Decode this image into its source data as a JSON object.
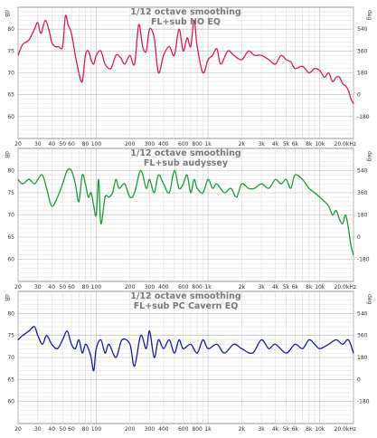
{
  "chart_data": [
    {
      "type": "line",
      "title": "1/12 octave smoothing",
      "subtitle": "FL+sub NO EQ",
      "y_unit_label": "dB",
      "right_unit_label": "deg",
      "x_unit_label": "Hz",
      "x_scale": "log",
      "xlim": [
        20,
        20000
      ],
      "ylim": [
        55,
        85
      ],
      "right_ylim": [
        -360,
        720
      ],
      "grid": true,
      "x_ticks": [
        {
          "v": 20,
          "label": "20"
        },
        {
          "v": 30,
          "label": "30"
        },
        {
          "v": 40,
          "label": "40"
        },
        {
          "v": 50,
          "label": "50"
        },
        {
          "v": 60,
          "label": "60"
        },
        {
          "v": 80,
          "label": "80"
        },
        {
          "v": 100,
          "label": "100"
        },
        {
          "v": 200,
          "label": "200"
        },
        {
          "v": 300,
          "label": "300"
        },
        {
          "v": 400,
          "label": "400"
        },
        {
          "v": 600,
          "label": "600"
        },
        {
          "v": 800,
          "label": "800"
        },
        {
          "v": 1000,
          "label": "1k"
        },
        {
          "v": 2000,
          "label": "2k"
        },
        {
          "v": 3000,
          "label": "3k"
        },
        {
          "v": 4000,
          "label": "4k"
        },
        {
          "v": 5000,
          "label": "5k"
        },
        {
          "v": 6000,
          "label": "6k"
        },
        {
          "v": 8000,
          "label": "8k"
        },
        {
          "v": 10000,
          "label": "10k"
        },
        {
          "v": 20000,
          "label": "20.0kHz"
        }
      ],
      "y_ticks": [
        {
          "v": 80,
          "label": "80"
        },
        {
          "v": 75,
          "label": "75"
        },
        {
          "v": 70,
          "label": "70"
        },
        {
          "v": 65,
          "label": "65"
        },
        {
          "v": 60,
          "label": "60"
        }
      ],
      "right_ticks": [
        {
          "v": 540,
          "label": "540"
        },
        {
          "v": 360,
          "label": "360"
        },
        {
          "v": 180,
          "label": "180"
        },
        {
          "v": 0,
          "label": "0"
        },
        {
          "v": -180,
          "label": "-180"
        }
      ],
      "series": [
        {
          "color": "#d81b50",
          "x": [
            20,
            22,
            25,
            28,
            30,
            32,
            35,
            38,
            40,
            43,
            46,
            50,
            53,
            56,
            60,
            65,
            70,
            75,
            80,
            85,
            90,
            95,
            100,
            110,
            120,
            135,
            150,
            165,
            180,
            200,
            220,
            240,
            260,
            280,
            300,
            330,
            360,
            400,
            450,
            500,
            550,
            600,
            650,
            700,
            750,
            800,
            900,
            1000,
            1100,
            1200,
            1300,
            1500,
            1700,
            2000,
            2300,
            2600,
            3000,
            3500,
            4000,
            4500,
            5000,
            5500,
            6000,
            7000,
            8000,
            9000,
            10000,
            11000,
            12000,
            13000,
            14000,
            15000,
            16000,
            17000,
            18000,
            19000,
            20000
          ],
          "y": [
            74,
            76.5,
            77.5,
            80,
            81.5,
            79,
            82,
            79.5,
            77,
            76,
            76,
            76,
            83,
            81,
            79,
            74,
            70,
            68,
            74,
            75,
            73,
            72,
            74,
            75,
            72,
            71,
            74,
            73.5,
            72,
            74,
            72,
            81,
            76,
            75,
            80,
            78,
            70,
            74,
            76,
            74,
            80,
            75,
            78,
            76,
            82,
            76,
            70,
            73,
            74,
            75.5,
            72,
            75,
            74,
            73,
            75,
            74,
            74,
            73,
            72,
            74,
            73,
            72.5,
            71,
            71.5,
            70,
            71,
            70.5,
            69,
            70,
            68,
            69,
            69,
            67.5,
            67,
            66,
            64,
            63
          ]
        }
      ]
    },
    {
      "type": "line",
      "title": "1/12 octave smoothing",
      "subtitle": "FL+sub audyssey",
      "y_unit_label": "dB",
      "right_unit_label": "deg",
      "x_unit_label": "Hz",
      "x_scale": "log",
      "xlim": [
        20,
        20000
      ],
      "ylim": [
        55,
        85
      ],
      "right_ylim": [
        -360,
        720
      ],
      "grid": true,
      "x_ticks": [
        {
          "v": 20,
          "label": "20"
        },
        {
          "v": 30,
          "label": "30"
        },
        {
          "v": 40,
          "label": "40"
        },
        {
          "v": 50,
          "label": "50"
        },
        {
          "v": 60,
          "label": "60"
        },
        {
          "v": 80,
          "label": "80"
        },
        {
          "v": 100,
          "label": "100"
        },
        {
          "v": 200,
          "label": "200"
        },
        {
          "v": 300,
          "label": "300"
        },
        {
          "v": 400,
          "label": "400"
        },
        {
          "v": 600,
          "label": "600"
        },
        {
          "v": 800,
          "label": "800"
        },
        {
          "v": 1000,
          "label": "1k"
        },
        {
          "v": 2000,
          "label": "2k"
        },
        {
          "v": 3000,
          "label": "3k"
        },
        {
          "v": 4000,
          "label": "4k"
        },
        {
          "v": 5000,
          "label": "5k"
        },
        {
          "v": 6000,
          "label": "6k"
        },
        {
          "v": 8000,
          "label": "8k"
        },
        {
          "v": 10000,
          "label": "10k"
        },
        {
          "v": 20000,
          "label": "20.0kHz"
        }
      ],
      "y_ticks": [
        {
          "v": 80,
          "label": "80"
        },
        {
          "v": 75,
          "label": "75"
        },
        {
          "v": 70,
          "label": "70"
        },
        {
          "v": 65,
          "label": "65"
        },
        {
          "v": 60,
          "label": "60"
        }
      ],
      "right_ticks": [
        {
          "v": 540,
          "label": "540"
        },
        {
          "v": 360,
          "label": "360"
        },
        {
          "v": 180,
          "label": "180"
        },
        {
          "v": 0,
          "label": "0"
        },
        {
          "v": -180,
          "label": "-180"
        }
      ],
      "series": [
        {
          "color": "#1e9a3c",
          "x": [
            20,
            22,
            25,
            28,
            30,
            33,
            36,
            40,
            45,
            50,
            55,
            60,
            65,
            70,
            75,
            80,
            85,
            90,
            95,
            100,
            105,
            110,
            120,
            130,
            140,
            150,
            160,
            180,
            200,
            220,
            250,
            280,
            300,
            330,
            360,
            400,
            450,
            500,
            550,
            600,
            650,
            700,
            750,
            800,
            900,
            1000,
            1100,
            1200,
            1400,
            1600,
            1800,
            2000,
            2300,
            2600,
            3000,
            3500,
            4000,
            4500,
            5000,
            5500,
            6000,
            7000,
            8000,
            9000,
            10000,
            11000,
            12000,
            13000,
            14000,
            15000,
            16000,
            17000,
            18000,
            19000,
            20000
          ],
          "y": [
            78,
            77,
            78,
            77,
            78,
            79,
            76,
            72,
            74,
            77,
            80,
            80,
            77,
            73,
            79,
            77,
            74,
            75,
            72,
            70,
            78,
            68,
            74,
            74,
            75,
            78,
            76,
            77,
            74,
            75,
            80,
            76,
            78,
            75,
            79,
            77,
            75,
            80,
            76,
            77,
            79,
            75,
            78,
            76,
            75,
            78,
            76,
            77,
            75,
            76,
            74,
            77,
            76,
            76,
            77,
            76,
            78,
            77,
            78,
            76,
            79,
            78,
            76,
            75,
            74,
            73,
            72,
            70,
            71,
            69,
            68,
            70,
            67,
            63,
            61
          ]
        }
      ]
    },
    {
      "type": "line",
      "title": "1/12 octave smoothing",
      "subtitle": "FL+sub PC Cavern EQ",
      "y_unit_label": "dB",
      "right_unit_label": "deg",
      "x_unit_label": "Hz",
      "x_scale": "log",
      "xlim": [
        20,
        20000
      ],
      "ylim": [
        55,
        85
      ],
      "right_ylim": [
        -360,
        720
      ],
      "grid": true,
      "x_ticks": [
        {
          "v": 20,
          "label": "20"
        },
        {
          "v": 30,
          "label": "30"
        },
        {
          "v": 40,
          "label": "40"
        },
        {
          "v": 50,
          "label": "50"
        },
        {
          "v": 60,
          "label": "60"
        },
        {
          "v": 80,
          "label": "80"
        },
        {
          "v": 100,
          "label": "100"
        },
        {
          "v": 200,
          "label": "200"
        },
        {
          "v": 300,
          "label": "300"
        },
        {
          "v": 400,
          "label": "400"
        },
        {
          "v": 600,
          "label": "600"
        },
        {
          "v": 800,
          "label": "800"
        },
        {
          "v": 1000,
          "label": "1k"
        },
        {
          "v": 2000,
          "label": "2k"
        },
        {
          "v": 3000,
          "label": "3k"
        },
        {
          "v": 4000,
          "label": "4k"
        },
        {
          "v": 5000,
          "label": "5k"
        },
        {
          "v": 6000,
          "label": "6k"
        },
        {
          "v": 8000,
          "label": "8k"
        },
        {
          "v": 10000,
          "label": "10k"
        },
        {
          "v": 20000,
          "label": "20.0kHz"
        }
      ],
      "y_ticks": [
        {
          "v": 80,
          "label": "80"
        },
        {
          "v": 75,
          "label": "75"
        },
        {
          "v": 70,
          "label": "70"
        },
        {
          "v": 65,
          "label": "65"
        },
        {
          "v": 60,
          "label": "60"
        }
      ],
      "right_ticks": [
        {
          "v": 540,
          "label": "540"
        },
        {
          "v": 360,
          "label": "360"
        },
        {
          "v": 180,
          "label": "180"
        },
        {
          "v": 0,
          "label": "0"
        },
        {
          "v": -180,
          "label": "-180"
        }
      ],
      "series": [
        {
          "color": "#1a1aa8",
          "x": [
            20,
            22,
            25,
            28,
            30,
            33,
            36,
            40,
            45,
            50,
            55,
            60,
            65,
            70,
            75,
            80,
            85,
            90,
            95,
            100,
            110,
            120,
            130,
            150,
            170,
            200,
            220,
            250,
            280,
            300,
            330,
            360,
            400,
            450,
            500,
            550,
            600,
            700,
            800,
            900,
            1000,
            1200,
            1400,
            1700,
            2000,
            2500,
            3000,
            3500,
            4000,
            5000,
            6000,
            7000,
            8000,
            9000,
            10000,
            12000,
            14000,
            16000,
            18000,
            20000
          ],
          "y": [
            74,
            75,
            76,
            77,
            75,
            73,
            75,
            73,
            72,
            74,
            76,
            73,
            72,
            74,
            71,
            73,
            72,
            70,
            67,
            72,
            74,
            71,
            73,
            70,
            74,
            73,
            68,
            75,
            72,
            76,
            70,
            74,
            72,
            74,
            71,
            74,
            72,
            73,
            71,
            74,
            72,
            73,
            71,
            73,
            72,
            71,
            74,
            72,
            73,
            71,
            73,
            72,
            74,
            73,
            72,
            73,
            74,
            73,
            74,
            71
          ]
        }
      ]
    }
  ]
}
